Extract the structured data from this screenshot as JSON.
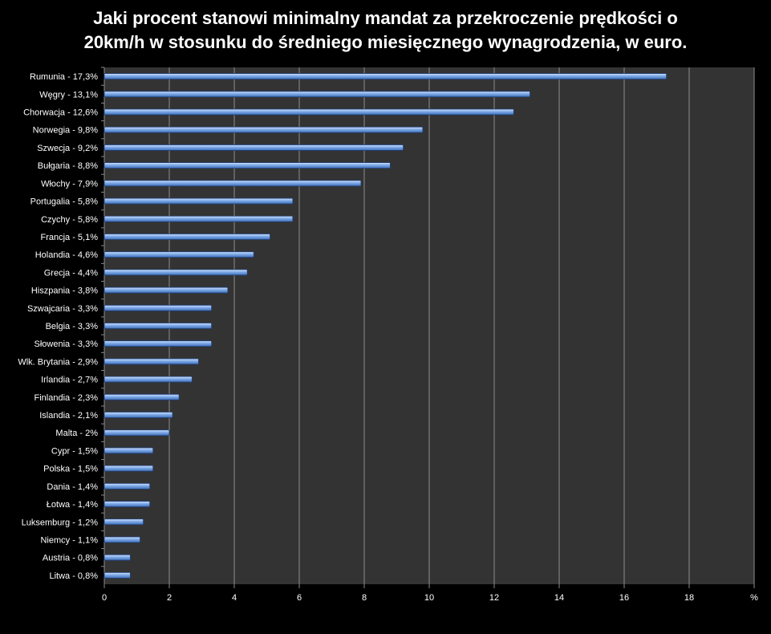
{
  "chart_data": {
    "type": "bar",
    "orientation": "horizontal",
    "title_lines": [
      "Jaki procent stanowi minimalny mandat za przekroczenie prędkości o",
      "20km/h    w stosunku do średniego miesięcznego wynagrodzenia, w euro."
    ],
    "categories": [
      "Rumunia - 17,3%",
      "Węgry - 13,1%",
      "Chorwacja - 12,6%",
      "Norwegia - 9,8%",
      "Szwecja - 9,2%",
      "Bułgaria - 8,8%",
      "Włochy - 7,9%",
      "Portugalia - 5,8%",
      "Czychy - 5,8%",
      "Francja - 5,1%",
      "Holandia - 4,6%",
      "Grecja - 4,4%",
      "Hiszpania - 3,8%",
      "Szwajcaria - 3,3%",
      "Belgia - 3,3%",
      "Słowenia - 3,3%",
      "Wlk. Brytania - 2,9%",
      "Irlandia - 2,7%",
      "Finlandia - 2,3%",
      "Islandia - 2,1%",
      "Malta - 2%",
      "Cypr - 1,5%",
      "Polska - 1,5%",
      "Dania - 1,4%",
      "Łotwa - 1,4%",
      "Luksemburg - 1,2%",
      "Niemcy - 1,1%",
      "Austria - 0,8%",
      "Litwa - 0,8%"
    ],
    "values": [
      17.3,
      13.1,
      12.6,
      9.8,
      9.2,
      8.8,
      7.9,
      5.8,
      5.8,
      5.1,
      4.6,
      4.4,
      3.8,
      3.3,
      3.3,
      3.3,
      2.9,
      2.7,
      2.3,
      2.1,
      2.0,
      1.5,
      1.5,
      1.4,
      1.4,
      1.2,
      1.1,
      0.8,
      0.8
    ],
    "xlim": [
      0,
      20
    ],
    "x_ticks": [
      "0",
      "2",
      "4",
      "6",
      "8",
      "10",
      "12",
      "14",
      "16",
      "18",
      "%"
    ],
    "grid": true,
    "colors": {
      "background": "#000000",
      "plot_area": "#333333",
      "gridline": "#8c8c8c",
      "bar_light": "#cfe3ff",
      "bar_mid": "#7fa9e6",
      "bar_dark": "#3e6fb8",
      "text": "#ffffff"
    }
  }
}
